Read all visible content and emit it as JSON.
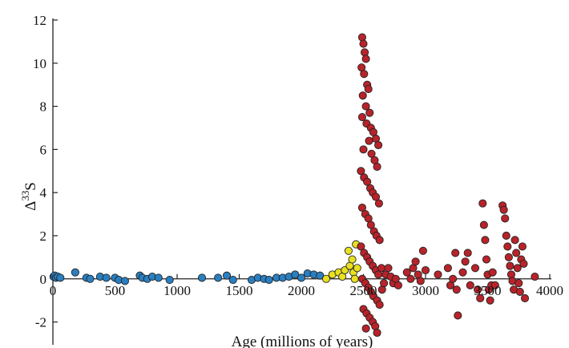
{
  "chart_data": {
    "type": "scatter",
    "title": "",
    "xlabel": "Age (millions of years)",
    "ylabel_symbol": "Δ",
    "ylabel_superscript": "33",
    "ylabel_suffix": "S",
    "xlim": [
      0,
      4000
    ],
    "ylim": [
      -2.5,
      12
    ],
    "xticks": [
      0,
      500,
      1000,
      1500,
      2000,
      2500,
      3000,
      3500,
      4000
    ],
    "yticks": [
      -2,
      0,
      2,
      4,
      6,
      8,
      10,
      12
    ],
    "grid": false,
    "legend": "none",
    "series": [
      {
        "color": "#2a7fc1",
        "points": [
          [
            5,
            0.1
          ],
          [
            15,
            0.15
          ],
          [
            25,
            0.05
          ],
          [
            40,
            0.1
          ],
          [
            60,
            0.05
          ],
          [
            180,
            0.3
          ],
          [
            270,
            0.05
          ],
          [
            300,
            0.0
          ],
          [
            380,
            0.1
          ],
          [
            430,
            0.05
          ],
          [
            500,
            0.05
          ],
          [
            530,
            -0.05
          ],
          [
            580,
            -0.1
          ],
          [
            700,
            0.15
          ],
          [
            720,
            0.05
          ],
          [
            760,
            0.0
          ],
          [
            800,
            0.1
          ],
          [
            850,
            0.05
          ],
          [
            940,
            -0.05
          ],
          [
            1200,
            0.05
          ],
          [
            1330,
            0.05
          ],
          [
            1400,
            0.15
          ],
          [
            1450,
            -0.05
          ],
          [
            1600,
            -0.05
          ],
          [
            1650,
            0.05
          ],
          [
            1700,
            0.0
          ],
          [
            1740,
            -0.05
          ],
          [
            1800,
            0.05
          ],
          [
            1850,
            0.05
          ],
          [
            1900,
            0.1
          ],
          [
            1950,
            0.2
          ],
          [
            2000,
            0.05
          ],
          [
            2050,
            0.25
          ],
          [
            2100,
            0.2
          ],
          [
            2150,
            0.15
          ]
        ]
      },
      {
        "color": "#e8e020",
        "points": [
          [
            2200,
            0.0
          ],
          [
            2250,
            0.2
          ],
          [
            2300,
            0.3
          ],
          [
            2330,
            0.1
          ],
          [
            2350,
            0.4
          ],
          [
            2380,
            1.3
          ],
          [
            2390,
            0.6
          ],
          [
            2410,
            0.9
          ],
          [
            2420,
            0.3
          ],
          [
            2430,
            0.0
          ],
          [
            2440,
            1.6
          ],
          [
            2450,
            0.5
          ]
        ]
      },
      {
        "color": "#b8232a",
        "points": [
          [
            2490,
            11.2
          ],
          [
            2500,
            10.9
          ],
          [
            2510,
            10.5
          ],
          [
            2520,
            10.2
          ],
          [
            2485,
            9.8
          ],
          [
            2505,
            9.5
          ],
          [
            2530,
            9.0
          ],
          [
            2540,
            8.8
          ],
          [
            2495,
            8.5
          ],
          [
            2520,
            8.0
          ],
          [
            2550,
            7.7
          ],
          [
            2490,
            7.5
          ],
          [
            2525,
            7.2
          ],
          [
            2560,
            7.0
          ],
          [
            2580,
            6.8
          ],
          [
            2600,
            6.5
          ],
          [
            2620,
            6.2
          ],
          [
            2500,
            6.0
          ],
          [
            2545,
            6.4
          ],
          [
            2565,
            5.8
          ],
          [
            2590,
            5.5
          ],
          [
            2610,
            5.2
          ],
          [
            2480,
            5.0
          ],
          [
            2505,
            4.7
          ],
          [
            2530,
            4.5
          ],
          [
            2555,
            4.2
          ],
          [
            2575,
            4.0
          ],
          [
            2600,
            3.8
          ],
          [
            2625,
            3.5
          ],
          [
            2490,
            3.3
          ],
          [
            2515,
            3.0
          ],
          [
            2540,
            2.8
          ],
          [
            2560,
            2.5
          ],
          [
            2585,
            2.2
          ],
          [
            2605,
            2.0
          ],
          [
            2630,
            1.8
          ],
          [
            2480,
            1.5
          ],
          [
            2505,
            1.2
          ],
          [
            2530,
            1.0
          ],
          [
            2550,
            0.8
          ],
          [
            2575,
            0.6
          ],
          [
            2600,
            0.4
          ],
          [
            2620,
            0.2
          ],
          [
            2645,
            0.5
          ],
          [
            2490,
            0.0
          ],
          [
            2515,
            -0.2
          ],
          [
            2540,
            -0.4
          ],
          [
            2560,
            -0.6
          ],
          [
            2580,
            -0.8
          ],
          [
            2610,
            -1.0
          ],
          [
            2630,
            -1.2
          ],
          [
            2500,
            -1.4
          ],
          [
            2525,
            -1.6
          ],
          [
            2550,
            -1.8
          ],
          [
            2575,
            -2.0
          ],
          [
            2595,
            -2.2
          ],
          [
            2610,
            -2.5
          ],
          [
            2520,
            -2.3
          ],
          [
            2650,
            -0.5
          ],
          [
            2665,
            -0.2
          ],
          [
            2680,
            0.2
          ],
          [
            2700,
            0.5
          ],
          [
            2720,
            0.1
          ],
          [
            2740,
            -0.2
          ],
          [
            2760,
            0.0
          ],
          [
            2780,
            -0.3
          ],
          [
            2850,
            0.3
          ],
          [
            2880,
            0.0
          ],
          [
            2900,
            0.5
          ],
          [
            2920,
            0.8
          ],
          [
            2940,
            0.2
          ],
          [
            2960,
            -0.1
          ],
          [
            2980,
            1.3
          ],
          [
            3000,
            0.4
          ],
          [
            3100,
            0.2
          ],
          [
            3180,
            0.5
          ],
          [
            3200,
            -0.3
          ],
          [
            3220,
            0.0
          ],
          [
            3240,
            1.2
          ],
          [
            3250,
            -0.5
          ],
          [
            3260,
            -1.7
          ],
          [
            3300,
            0.3
          ],
          [
            3320,
            0.8
          ],
          [
            3340,
            1.2
          ],
          [
            3360,
            -0.3
          ],
          [
            3400,
            0.5
          ],
          [
            3420,
            -0.5
          ],
          [
            3440,
            -0.9
          ],
          [
            3460,
            3.5
          ],
          [
            3470,
            2.5
          ],
          [
            3480,
            1.8
          ],
          [
            3490,
            0.9
          ],
          [
            3500,
            0.2
          ],
          [
            3510,
            -0.5
          ],
          [
            3520,
            -1.0
          ],
          [
            3530,
            -0.3
          ],
          [
            3540,
            0.3
          ],
          [
            3560,
            -0.3
          ],
          [
            3620,
            3.4
          ],
          [
            3630,
            3.2
          ],
          [
            3640,
            2.8
          ],
          [
            3650,
            2.0
          ],
          [
            3660,
            1.5
          ],
          [
            3670,
            1.0
          ],
          [
            3680,
            0.6
          ],
          [
            3690,
            0.2
          ],
          [
            3700,
            -0.1
          ],
          [
            3710,
            -0.5
          ],
          [
            3720,
            1.8
          ],
          [
            3730,
            1.2
          ],
          [
            3740,
            0.5
          ],
          [
            3750,
            -0.2
          ],
          [
            3760,
            -0.6
          ],
          [
            3770,
            0.9
          ],
          [
            3780,
            1.5
          ],
          [
            3790,
            0.7
          ],
          [
            3800,
            -0.9
          ],
          [
            3880,
            0.1
          ]
        ]
      }
    ]
  }
}
